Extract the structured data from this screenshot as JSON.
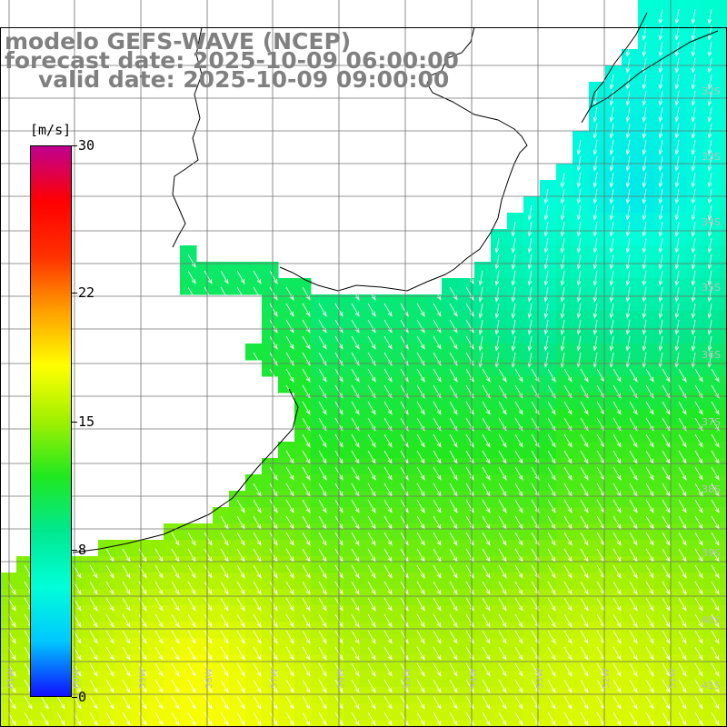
{
  "titles": {
    "model": "modelo GEFS-WAVE (NCEP)",
    "forecast": "forecast date: 2025-10-09 06:00:00",
    "valid": "valid date: 2025-10-09 09:00:00"
  },
  "colorbar": {
    "unit": "[m/s]",
    "min": 0,
    "max": 30,
    "ticks": [
      {
        "label": "30",
        "value": 30
      },
      {
        "label": "22",
        "value": 22
      },
      {
        "label": "15",
        "value": 15
      },
      {
        "label": "8",
        "value": 8
      },
      {
        "label": "0",
        "value": 0
      }
    ],
    "stops": [
      "#1010ff",
      "#00c8ff",
      "#00ffd8",
      "#00e890",
      "#20e820",
      "#a0f000",
      "#ffff00",
      "#ffa000",
      "#ff3000",
      "#ff0000",
      "#c00090"
    ]
  },
  "map": {
    "lon_labels": [
      "61W",
      "60W",
      "59W",
      "58W",
      "57W",
      "56W",
      "55W",
      "54W",
      "53W",
      "52W",
      "51W"
    ],
    "lat_labels": [
      "32S",
      "33S",
      "34S",
      "35S",
      "36S",
      "37S",
      "38S",
      "39S",
      "40S",
      "41S"
    ],
    "colors": {
      "land": "#ffffff",
      "coast": "#000000",
      "grid": "#707070",
      "arrow": "#ffffff",
      "label": "#bfbfbf"
    }
  }
}
